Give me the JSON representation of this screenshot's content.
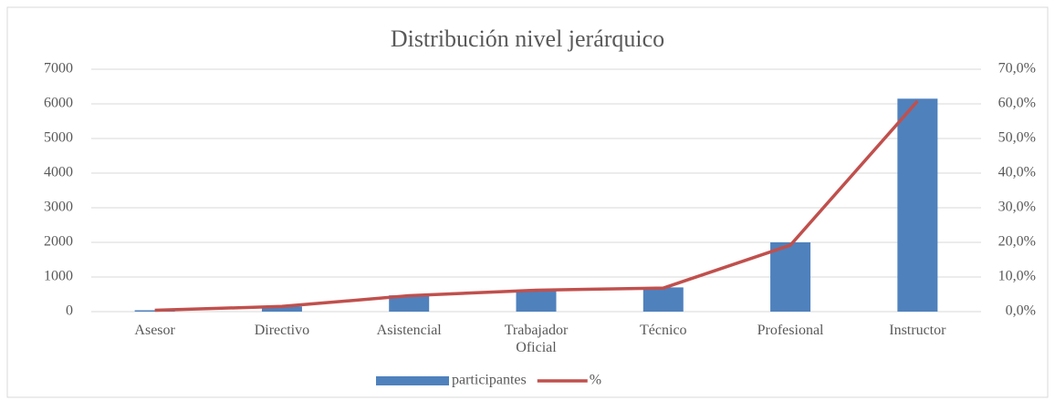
{
  "chart_data": {
    "type": "bar",
    "title": "Distribución nivel jerárquico",
    "categories": [
      "Asesor",
      "Directivo",
      "Asistencial",
      "Trabajador Oficial",
      "Técnico",
      "Profesional",
      "Instructor"
    ],
    "series": [
      {
        "name": "participantes",
        "type": "bar",
        "color": "#4f81bd",
        "values": [
          40,
          150,
          470,
          620,
          700,
          2000,
          6150
        ]
      },
      {
        "name": "%",
        "type": "line",
        "axis": "y2",
        "color": "#c0504d",
        "values": [
          0.4,
          1.5,
          4.6,
          6.2,
          6.8,
          19.2,
          60.8
        ]
      }
    ],
    "ylim": [
      0,
      7000
    ],
    "yticks": [
      0,
      1000,
      2000,
      3000,
      4000,
      5000,
      6000,
      7000
    ],
    "y2lim": [
      0,
      70
    ],
    "y2ticks": [
      {
        "value": 0,
        "label": "0,0%"
      },
      {
        "value": 10,
        "label": "10,0%"
      },
      {
        "value": 20,
        "label": "20,0%"
      },
      {
        "value": 30,
        "label": "30,0%"
      },
      {
        "value": 40,
        "label": "40,0%"
      },
      {
        "value": 50,
        "label": "50,0%"
      },
      {
        "value": 60,
        "label": "60,0%"
      },
      {
        "value": 70,
        "label": "70,0%"
      }
    ],
    "grid": true,
    "legend": "bottom"
  }
}
